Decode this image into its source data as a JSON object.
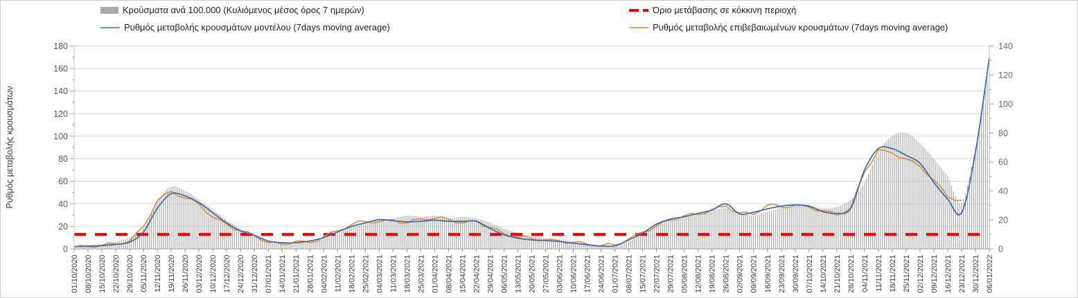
{
  "legend": {
    "bars": "Κρούσματα ανά 100.000 (Κυλιόμενος μέσος όρος 7 ημερών)",
    "model": "Ρυθμός μεταβολής κρουσμάτων μοντέλου (7days moving average)",
    "threshold": "Όριο μετάβασης σε κόκκινη περιοχή",
    "confirmed": "Ρυθμός μεταβολής επιβεβαιωμένων κρουσμάτων (7days moving average)"
  },
  "y_axis_left": {
    "title": "Ρυθμός μεταβολής κρουσμάτων",
    "tick_labels": [
      0,
      20,
      40,
      60,
      80,
      100,
      120,
      140,
      160,
      180
    ],
    "max": 180
  },
  "y_axis_right": {
    "tick_labels": [
      0,
      20,
      40,
      60,
      80,
      100,
      120,
      140
    ],
    "max": 140
  },
  "colors": {
    "bars": "#a9a9a9",
    "model_line": "#3a68b2",
    "confirmed_line": "#e2872f",
    "threshold_line": "#fe0000",
    "grid": "#dcdcdc",
    "axis": "#9a9a9a",
    "tick_text_left": "#595959",
    "tick_text_right": "#6e6e6e",
    "tick_text_x": "#3c3c3c"
  },
  "chart_data": {
    "type": "combo",
    "grid": "horizontal",
    "legend_position": "top",
    "ylim_left": [
      0,
      180
    ],
    "ylim_right": [
      0,
      140
    ],
    "categories": [
      "01/10/2020",
      "08/10/2020",
      "15/10/2020",
      "22/10/2020",
      "29/10/2020",
      "05/11/2020",
      "12/11/2020",
      "19/11/2020",
      "26/11/2020",
      "03/12/2020",
      "10/12/2020",
      "17/12/2020",
      "24/12/2020",
      "31/12/2020",
      "07/01/2021",
      "14/01/2021",
      "21/01/2021",
      "28/01/2021",
      "04/02/2021",
      "11/02/2021",
      "18/02/2021",
      "25/02/2021",
      "04/03/2021",
      "11/03/2021",
      "18/03/2021",
      "25/03/2021",
      "01/04/2021",
      "08/04/2021",
      "15/04/2021",
      "22/04/2021",
      "29/04/2021",
      "06/05/2021",
      "13/05/2021",
      "20/05/2021",
      "27/05/2021",
      "03/06/2021",
      "10/06/2021",
      "17/06/2021",
      "24/06/2021",
      "01/07/2021",
      "08/07/2021",
      "15/07/2021",
      "22/07/2021",
      "29/07/2021",
      "05/08/2021",
      "12/08/2021",
      "19/08/2021",
      "26/08/2021",
      "02/09/2021",
      "09/09/2021",
      "16/09/2021",
      "23/09/2021",
      "30/09/2021",
      "07/10/2021",
      "14/10/2021",
      "21/10/2021",
      "28/10/2021",
      "04/11/2021",
      "11/11/2021",
      "18/11/2021",
      "25/11/2021",
      "02/12/2021",
      "09/12/2021",
      "16/12/2021",
      "23/12/2021",
      "30/12/2021",
      "06/01/2022"
    ],
    "series": [
      {
        "name": "Κρούσματα ανά 100.000 (Κυλιόμενος μέσος όρος 7 ημερών)",
        "type": "bar",
        "axis": "right",
        "values": [
          2,
          2.5,
          3,
          5,
          8,
          14,
          33,
          43,
          40,
          34,
          27,
          20,
          14,
          10,
          5,
          4.5,
          4.5,
          5,
          7,
          11,
          15,
          17,
          20,
          21,
          23,
          22,
          23,
          21,
          22,
          21,
          18,
          14,
          11,
          9,
          7.5,
          6.5,
          5,
          3.5,
          2.5,
          2.5,
          5,
          11,
          17,
          20,
          21.5,
          24,
          26.5,
          28,
          25,
          23,
          25.5,
          28,
          30,
          29.5,
          28,
          29,
          34,
          46,
          67,
          78,
          80,
          73,
          62,
          50,
          32,
          70,
          122
        ]
      },
      {
        "name": "Ρυθμός μεταβολής κρουσμάτων μοντέλου (7days moving average)",
        "type": "line",
        "axis": "left",
        "values": [
          2,
          2.5,
          3,
          4,
          6,
          15,
          36,
          49,
          47,
          41,
          32,
          23,
          16,
          12,
          7,
          5.5,
          5.5,
          7,
          10,
          15,
          20,
          23,
          26,
          25,
          24,
          24.5,
          25.5,
          24.5,
          24.5,
          24.5,
          18,
          12.5,
          9.5,
          8,
          7.5,
          6.5,
          5,
          3.7,
          2.5,
          2.7,
          8,
          14,
          22,
          26.5,
          28.5,
          31.5,
          34.5,
          40,
          31,
          32.5,
          35.5,
          38,
          39,
          38,
          33,
          31.5,
          36,
          70,
          89,
          89,
          83,
          76,
          59,
          44,
          32,
          86,
          170
        ]
      },
      {
        "name": "Ρυθμός μεταβολής επιβεβαιωμένων κρουσμάτων (7days moving average)",
        "type": "line",
        "axis": "left",
        "values": [
          1.5,
          2,
          3,
          4.5,
          7,
          20,
          43,
          51,
          45,
          40,
          28,
          22,
          16,
          12,
          5.5,
          4,
          7,
          5.5,
          11,
          16,
          21.5,
          24.5,
          24,
          26,
          23,
          26.5,
          27,
          26.5,
          23,
          25,
          19,
          13.5,
          10.5,
          9,
          8,
          7.2,
          6,
          4.2,
          3,
          3.5,
          9,
          15,
          20.5,
          25.5,
          29.5,
          30.5,
          35,
          38,
          32,
          30.5,
          39,
          37,
          39,
          37,
          34,
          30,
          36,
          68,
          88,
          85,
          80,
          73,
          61,
          46,
          43,
          null,
          null
        ]
      },
      {
        "name": "Όριο μετάβασης σε κόκκινη περιοχή",
        "type": "threshold",
        "axis": "right",
        "value": 10
      }
    ]
  }
}
